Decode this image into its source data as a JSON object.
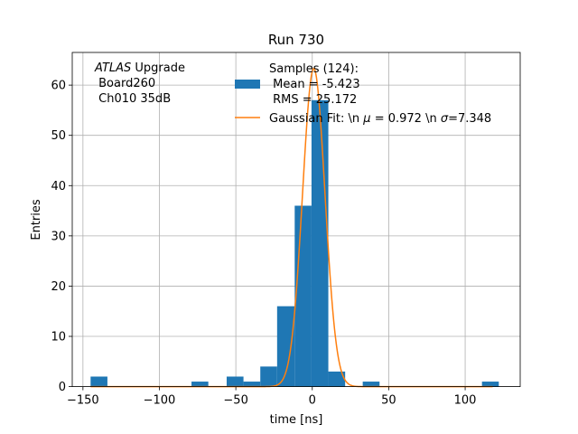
{
  "chart_data": {
    "type": "bar",
    "title": "Run 730",
    "xlabel": "time [ns]",
    "ylabel": "Entries",
    "xlim": [
      -157,
      136
    ],
    "ylim": [
      0,
      66.5
    ],
    "grid": true,
    "x_ticks": [
      -150,
      -100,
      -50,
      0,
      50,
      100
    ],
    "x_tick_labels": [
      "−150",
      "−100",
      "−50",
      "0",
      "50",
      "100"
    ],
    "y_ticks": [
      0,
      10,
      20,
      30,
      40,
      50,
      60
    ],
    "y_tick_labels": [
      "0",
      "10",
      "20",
      "30",
      "40",
      "50",
      "60"
    ],
    "histogram": {
      "name": "Samples (124):\n Mean = -5.423\n RMS = 25.172",
      "color": "#1f77b4",
      "bins": [
        {
          "x0": -145.0,
          "x1": -134.0,
          "value": 2
        },
        {
          "x0": -79.0,
          "x1": -68.0,
          "value": 1
        },
        {
          "x0": -56.0,
          "x1": -45.0,
          "value": 2
        },
        {
          "x0": -45.0,
          "x1": -34.0,
          "value": 1
        },
        {
          "x0": -34.0,
          "x1": -23.0,
          "value": 4
        },
        {
          "x0": -23.0,
          "x1": -11.5,
          "value": 16
        },
        {
          "x0": -11.5,
          "x1": -0.5,
          "value": 36
        },
        {
          "x0": -0.5,
          "x1": 10.5,
          "value": 57
        },
        {
          "x0": 10.5,
          "x1": 21.5,
          "value": 3
        },
        {
          "x0": 33.0,
          "x1": 44.0,
          "value": 1
        },
        {
          "x0": 111.0,
          "x1": 122.0,
          "value": 1
        }
      ]
    },
    "fit": {
      "name": "Gaussian Fit: \\n $\\mu$ = 0.972 \\n $\\sigma$=7.348",
      "label_prefix": "Gaussian Fit: \\n ",
      "label_mu_symbol": "μ",
      "label_mid": " = 0.972 \\n ",
      "label_sigma_symbol": "σ",
      "label_suffix": "=7.348",
      "color": "#ff7f0e",
      "mu": 0.972,
      "sigma": 7.348,
      "amplitude": 63.3
    },
    "legend": {
      "placement": "top-center",
      "hist_label": "Samples (124):",
      "hist_mean": " Mean = -5.423",
      "hist_rms": " RMS = 25.172"
    },
    "annotation": {
      "italic": "ATLAS",
      "rest": " Upgrade",
      "line2": " Board260",
      "line3": " Ch010 35dB"
    }
  }
}
